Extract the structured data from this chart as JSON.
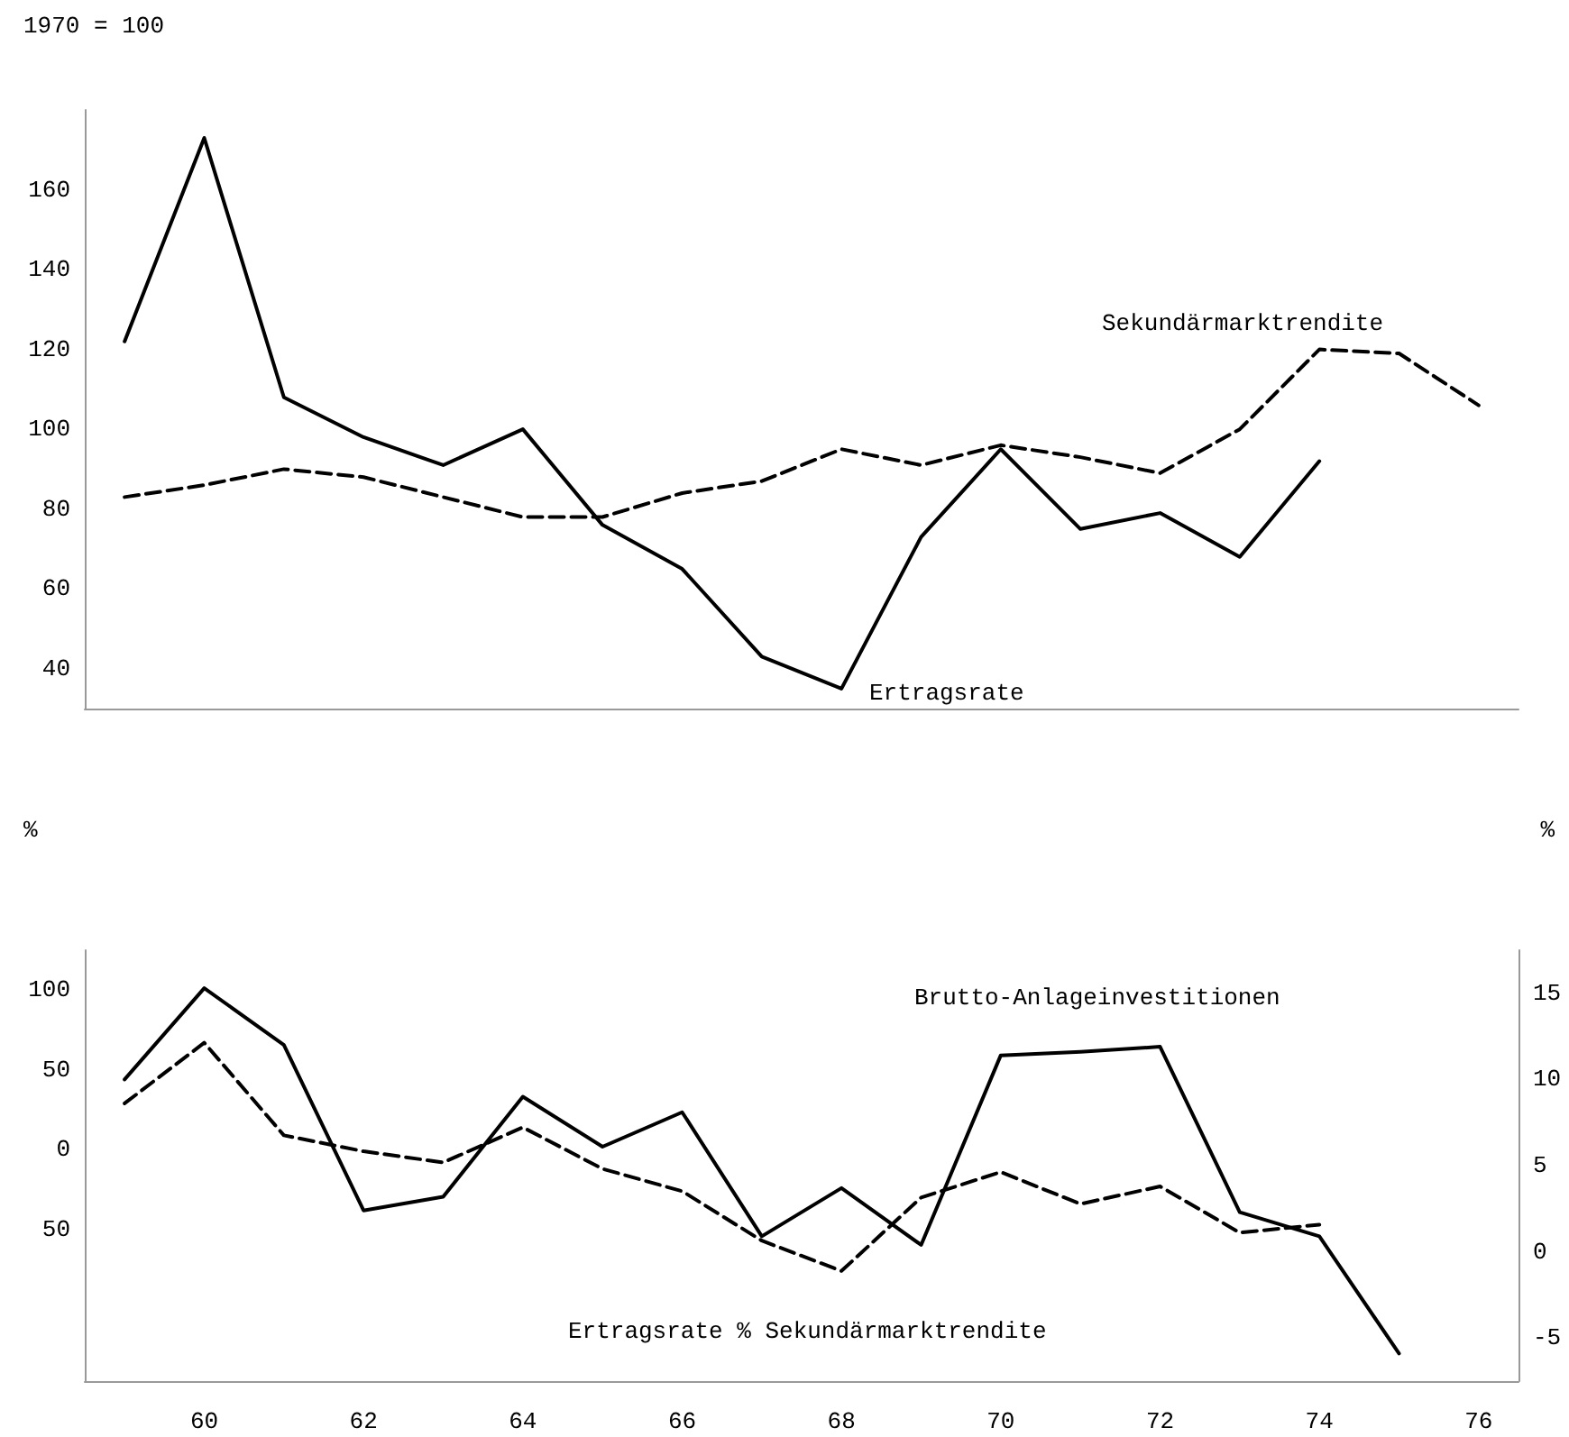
{
  "chart_data": [
    {
      "type": "line",
      "ylabel": "1970 = 100",
      "xlim": [
        58.5,
        76.5
      ],
      "ylim": [
        30,
        180
      ],
      "tick_labels": "y",
      "yticks": [
        40,
        60,
        80,
        100,
        120,
        140,
        160
      ],
      "series": [
        {
          "name": "Sekundärmarktrendite",
          "color": "#000000",
          "line_style": "dashed",
          "x": [
            59,
            60,
            61,
            62,
            63,
            64,
            65,
            66,
            67,
            68,
            69,
            70,
            71,
            72,
            73,
            74,
            75,
            76
          ],
          "values": [
            83,
            86,
            90,
            88,
            83,
            78,
            78,
            84,
            87,
            95,
            91,
            96,
            93,
            89,
            100,
            120,
            119,
            106
          ]
        },
        {
          "name": "Ertragsrate",
          "color": "#000000",
          "line_style": "solid",
          "x": [
            59,
            60,
            61,
            62,
            63,
            64,
            65,
            66,
            67,
            68,
            69,
            70,
            71,
            72,
            73,
            74
          ],
          "values": [
            122,
            173,
            108,
            98,
            91,
            100,
            76,
            65,
            43,
            35,
            73,
            95,
            75,
            79,
            68,
            92
          ]
        }
      ]
    },
    {
      "type": "line",
      "ylabel": "%",
      "y2label": "%",
      "xlim": [
        58.5,
        76.5
      ],
      "ylim": [
        -145,
        125
      ],
      "y2lim": [
        -7.5,
        17.5
      ],
      "xticks": [
        60,
        62,
        64,
        66,
        68,
        70,
        72,
        74,
        76
      ],
      "yticks": [
        {
          "value": -50,
          "label": "50"
        },
        0,
        50,
        100
      ],
      "y2ticks": [
        -5,
        0,
        5,
        10,
        15
      ],
      "series": [
        {
          "name": "Brutto-Anlageinvestitionen",
          "color": "#000000",
          "line_style": "solid",
          "axis": "y2",
          "x": [
            59,
            60,
            61,
            62,
            63,
            64,
            65,
            66,
            67,
            68,
            69,
            70,
            71,
            72,
            73,
            74,
            75
          ],
          "values": [
            10,
            15.3,
            12,
            2.4,
            3.2,
            9,
            6.1,
            8.1,
            0.9,
            3.7,
            0.4,
            11.4,
            11.6,
            11.9,
            2.3,
            0.9,
            -5.9
          ]
        },
        {
          "name": "Ertragsrate % Sekundärmarktrendite",
          "color": "#000000",
          "line_style": "dashed",
          "axis": "y",
          "x": [
            59,
            60,
            61,
            62,
            63,
            64,
            65,
            66,
            67,
            68,
            69,
            70,
            71,
            72,
            73,
            74
          ],
          "values": [
            29,
            67,
            9,
            -1,
            -8,
            14,
            -12,
            -26,
            -57,
            -76,
            -30,
            -14,
            -34,
            -23,
            -52,
            -47
          ]
        }
      ]
    }
  ]
}
